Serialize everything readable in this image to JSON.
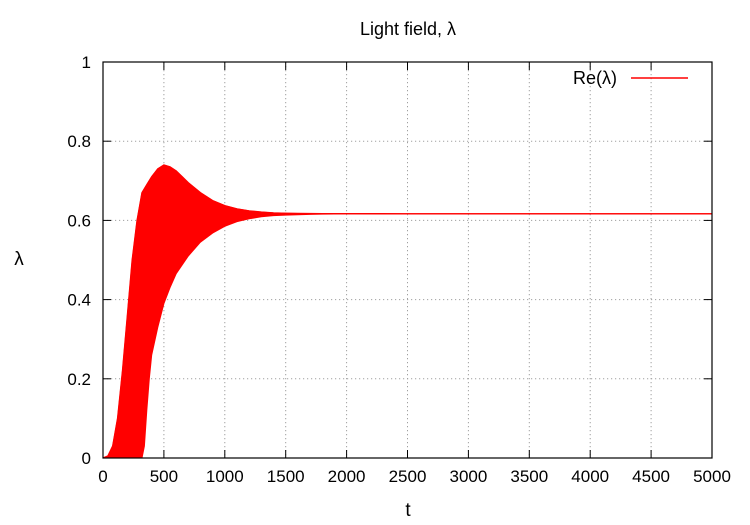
{
  "chart_data": {
    "type": "line",
    "title": "Light field, λ",
    "xlabel": "t",
    "ylabel": "λ",
    "xlim": [
      0,
      5000
    ],
    "ylim": [
      0,
      1
    ],
    "x_ticks": [
      "0",
      "500",
      "1000",
      "1500",
      "2000",
      "2500",
      "3000",
      "3500",
      "4000",
      "4500",
      "5000"
    ],
    "y_ticks": [
      "0",
      "0.2",
      "0.4",
      "0.6",
      "0.8",
      "1"
    ],
    "grid": true,
    "legend_position": "top-right",
    "series": [
      {
        "name": "Re(λ)",
        "color": "#ff0000",
        "style": "rapid oscillation filling an envelope band",
        "upper_envelope": {
          "x": [
            0,
            40,
            80,
            120,
            160,
            200,
            240,
            280,
            320,
            360,
            400,
            450,
            500,
            550,
            600,
            650,
            700,
            800,
            900,
            1000,
            1100,
            1200,
            1300,
            1400,
            1500,
            1600,
            1700,
            1800,
            2000,
            2500,
            3000,
            4000,
            5000
          ],
          "y": [
            0,
            0.005,
            0.03,
            0.1,
            0.22,
            0.36,
            0.5,
            0.6,
            0.67,
            0.69,
            0.71,
            0.73,
            0.74,
            0.735,
            0.725,
            0.71,
            0.695,
            0.67,
            0.65,
            0.637,
            0.629,
            0.624,
            0.621,
            0.619,
            0.618,
            0.6175,
            0.6172,
            0.617,
            0.6168,
            0.6167,
            0.6167,
            0.6167,
            0.6167
          ]
        },
        "lower_envelope": {
          "x": [
            0,
            100,
            200,
            300,
            320,
            340,
            360,
            380,
            400,
            450,
            500,
            550,
            600,
            700,
            800,
            900,
            1000,
            1100,
            1200,
            1300,
            1400,
            1500,
            1600,
            1700,
            1800,
            2000,
            2500,
            3000,
            4000,
            5000
          ],
          "y": [
            0,
            0,
            0,
            0,
            0.0,
            0.03,
            0.12,
            0.2,
            0.26,
            0.33,
            0.39,
            0.43,
            0.465,
            0.51,
            0.545,
            0.568,
            0.585,
            0.597,
            0.604,
            0.609,
            0.612,
            0.6135,
            0.6145,
            0.6152,
            0.6158,
            0.6163,
            0.6166,
            0.6167,
            0.6167,
            0.6167
          ]
        }
      }
    ]
  }
}
